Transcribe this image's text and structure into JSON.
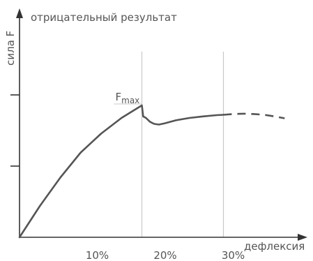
{
  "chart_data": {
    "type": "line",
    "title": "отрицательный результат",
    "xlabel": "дефлексия",
    "ylabel": "сила F",
    "x_ticks": [
      "10%",
      "20%",
      "30%"
    ],
    "xlim": [
      0,
      35
    ],
    "ylim": [
      0,
      100
    ],
    "series": [
      {
        "solid": {
          "x": [
            0,
            3,
            6,
            9,
            12,
            15,
            18,
            18.2,
            18.6,
            19.2,
            19.8,
            20.5,
            21.3,
            23,
            25,
            27,
            29,
            30
          ],
          "y": [
            0,
            20,
            38,
            54,
            66,
            76,
            84,
            77,
            76,
            73.5,
            72.2,
            71.8,
            72.5,
            74.5,
            76,
            77,
            77.8,
            78
          ]
        },
        "dashed": {
          "x": [
            30,
            31.5,
            33,
            34.5,
            36,
            37.5,
            39
          ],
          "y": [
            78,
            78.5,
            78.7,
            78.5,
            78,
            77,
            75.8
          ]
        }
      }
    ],
    "markers": [
      {
        "x": 18,
        "label_main": "F",
        "label_sub": "max"
      }
    ],
    "vertical_guides_x": [
      18,
      30
    ],
    "grid": false,
    "colors": {
      "line": "#555555",
      "axis": "#333333",
      "guide": "#c8c8c8"
    }
  }
}
